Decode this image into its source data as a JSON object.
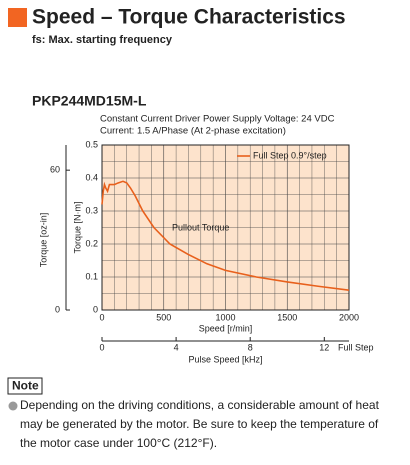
{
  "header": {
    "title": "Speed – Torque Characteristics",
    "subtitle": "fs: Max. starting frequency"
  },
  "chart_data": {
    "type": "line",
    "title": "PKP244MD15M-L",
    "subtitle": [
      "Constant Current Driver   Power Supply Voltage: 24 VDC",
      "Current: 1.5 A/Phase (At 2-phase excitation)"
    ],
    "x": [
      0,
      10,
      20,
      30,
      45,
      60,
      80,
      100,
      130,
      170,
      200,
      230,
      270,
      330,
      420,
      550,
      700,
      850,
      1000,
      1250,
      1500,
      1750,
      2000
    ],
    "series": [
      {
        "name": "Full Step 0.9°/step",
        "color": "#e8601c",
        "values": [
          0.32,
          0.36,
          0.38,
          0.37,
          0.36,
          0.38,
          0.38,
          0.38,
          0.385,
          0.39,
          0.385,
          0.37,
          0.345,
          0.3,
          0.25,
          0.2,
          0.168,
          0.14,
          0.12,
          0.1,
          0.085,
          0.072,
          0.06
        ]
      }
    ],
    "xlim": [
      0,
      2000
    ],
    "xticks": [
      0,
      500,
      1000,
      1500,
      2000
    ],
    "xlabel": "Speed [r/min]",
    "ylim": [
      0,
      0.5
    ],
    "yticks": [
      0,
      0.1,
      0.2,
      0.3,
      0.4,
      0.5
    ],
    "ylabel": "Torque [N·m]",
    "y2lim": [
      0,
      70.8
    ],
    "y2ticks": [
      0,
      60
    ],
    "y2label": "Torque [oz-in]",
    "x2lim": [
      0,
      13.333
    ],
    "x2ticks": [
      0,
      4,
      8,
      12
    ],
    "x2label": "Pulse Speed [kHz]",
    "x2name": "Full Step",
    "annotation": "Pullout Torque",
    "grid": true,
    "legend": "upper right"
  },
  "note": {
    "label": "Note",
    "lines": [
      "Depending on the driving conditions, a considerable amount of heat",
      "may be generated by the motor. Be sure to keep the temperature of",
      "the motor case under 100°C (212°F)."
    ]
  }
}
